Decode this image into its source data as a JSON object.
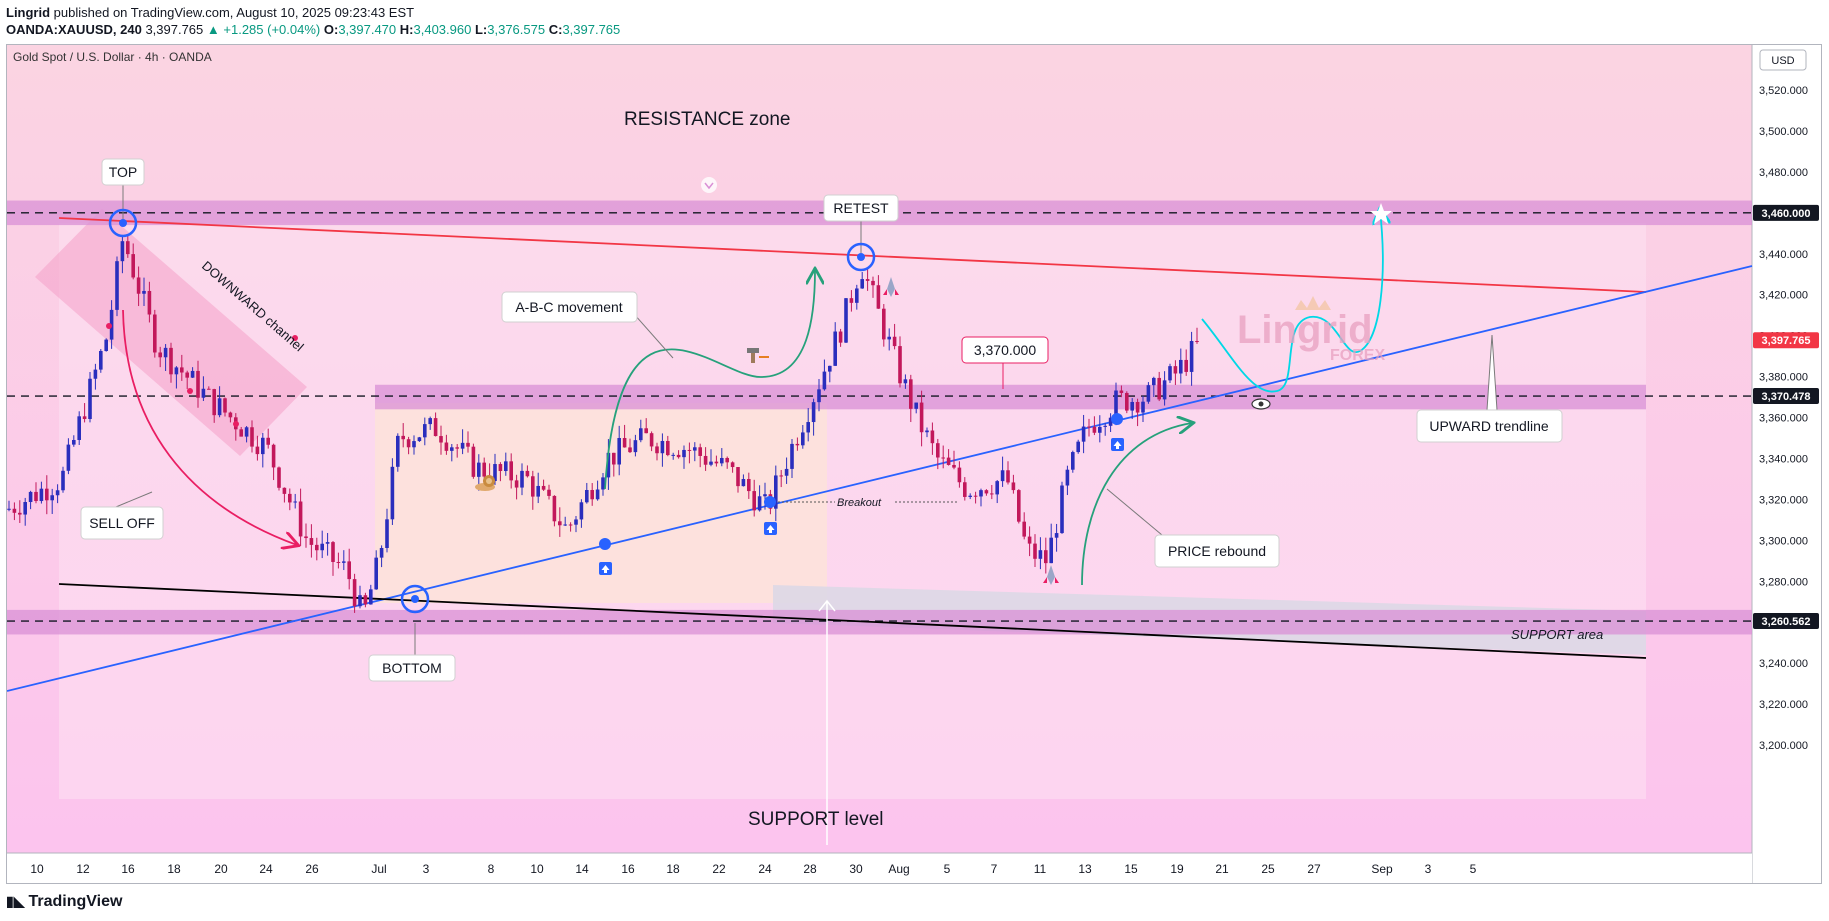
{
  "header": {
    "author": "Lingrid",
    "published_text": "published on TradingView.com, August 10, 2025 09:23:43 EST",
    "symbol": "OANDA:XAUUSD, 240",
    "last_price": "3,397.765",
    "change": "▲ +1.285 (+0.04%)",
    "o_label": "O:",
    "o": "3,397.470",
    "h_label": "H:",
    "h": "3,403.960",
    "l_label": "L:",
    "l": "3,376.575",
    "c_label": "C:",
    "c": "3,397.765"
  },
  "footer": {
    "brand": "TradingView",
    "logo_icon": "tradingview-logo-icon"
  },
  "colors": {
    "up": "#2a2ebd",
    "down": "#c2185b",
    "resistance_band": "#d990d6",
    "trend_red": "#f23645",
    "trend_blue": "#2962ff",
    "support_line": "#000000",
    "arrow_green": "#26a17b",
    "arrow_magenta": "#e91e63",
    "arrow_cyan": "#00d8e6"
  },
  "chart_data": {
    "type": "candlestick",
    "title": "Gold Spot / U.S. Dollar · 4h · OANDA",
    "currency": "USD",
    "ylim": [
      3192,
      3540
    ],
    "y_ticks": [
      3200,
      3220,
      3240,
      3260,
      3280,
      3300,
      3320,
      3340,
      3360,
      3380,
      3400,
      3420,
      3440,
      3460,
      3480,
      3500,
      3520
    ],
    "x_tick_labels": [
      "10",
      "12",
      "16",
      "18",
      "20",
      "24",
      "26",
      "Jul",
      "3",
      "8",
      "10",
      "14",
      "16",
      "18",
      "22",
      "24",
      "28",
      "30",
      "Aug",
      "5",
      "7",
      "11",
      "13",
      "15",
      "19",
      "21",
      "25",
      "27",
      "Sep",
      "3",
      "5"
    ],
    "price_tags": [
      {
        "label": "3,460.000",
        "value": 3460,
        "style": "dark"
      },
      {
        "label": "3,397.765",
        "value": 3397.765,
        "style": "red"
      },
      {
        "label": "3,370.478",
        "value": 3370.478,
        "style": "dark"
      },
      {
        "label": "3,260.562",
        "value": 3260.562,
        "style": "dark"
      }
    ],
    "zones": [
      {
        "name": "resistance zone band",
        "low": 3454,
        "high": 3466
      },
      {
        "name": "mid range band",
        "low": 3364,
        "high": 3376
      },
      {
        "name": "support band",
        "low": 3254,
        "high": 3266
      }
    ],
    "annotations": {
      "resistance_zone": "RESISTANCE zone",
      "support_level": "SUPPORT level",
      "support_area": "SUPPORT area",
      "top": "TOP",
      "bottom": "BOTTOM",
      "retest": "RETEST",
      "abc": "A-B-C movement",
      "level_3370": "3,370.000",
      "upward_trendline": "UPWARD trendline",
      "price_rebound": "PRICE rebound",
      "sell_off": "SELL OFF",
      "downward_channel": "DOWNWARD channel",
      "breakout": "Breakout",
      "watermark": "Lingrid",
      "watermark_sub": "FOREX"
    }
  }
}
